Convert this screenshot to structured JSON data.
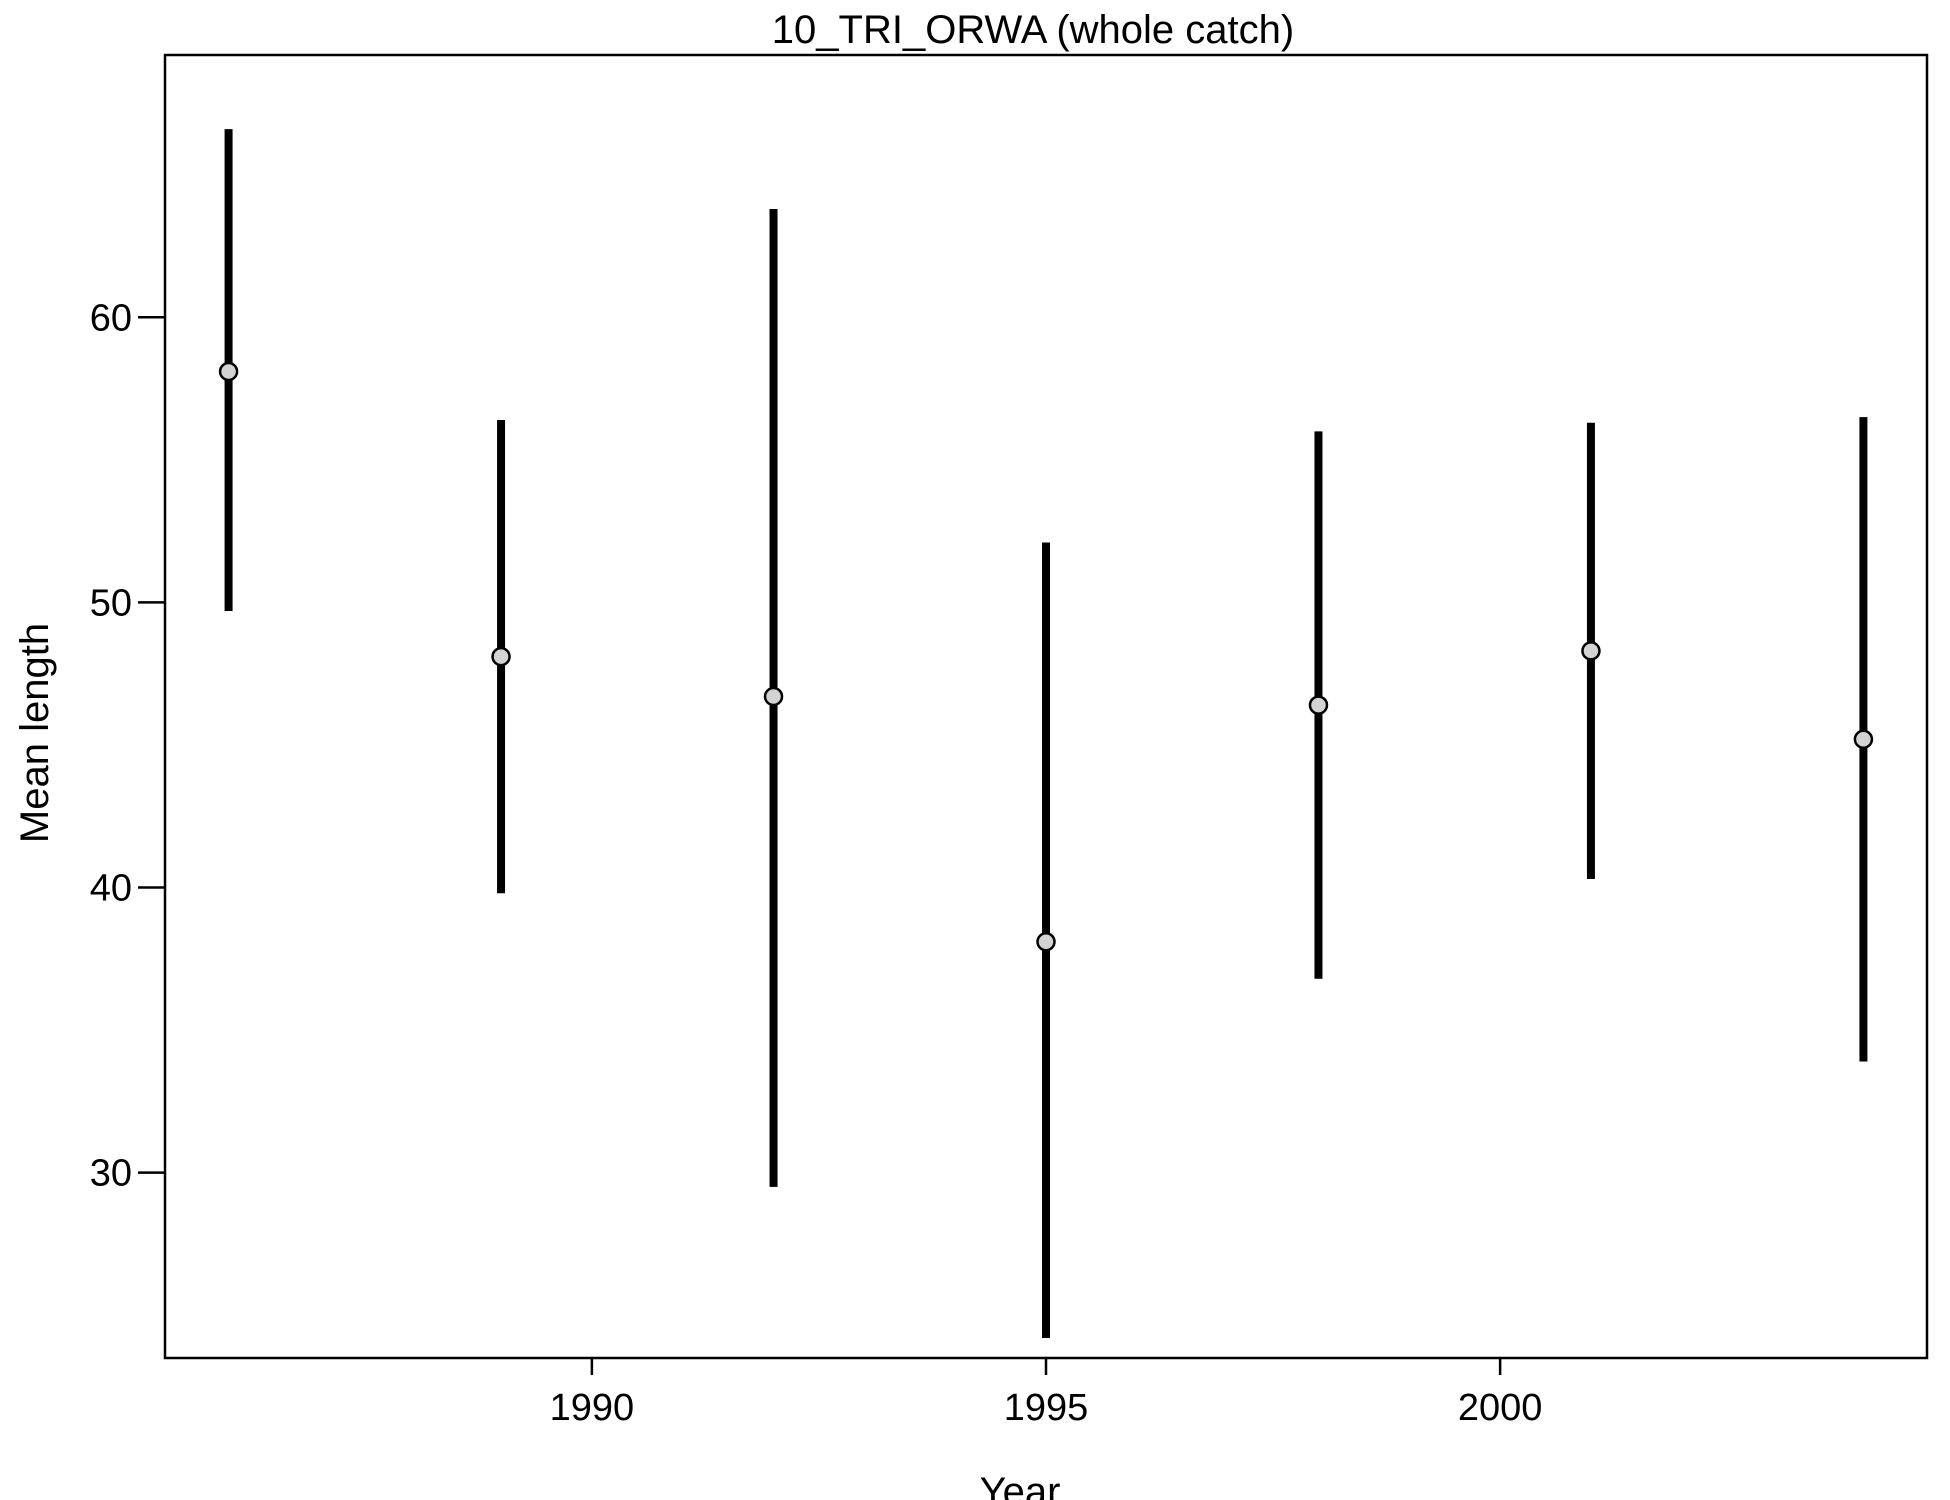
{
  "chart_data": {
    "type": "scatter",
    "title": "10_TRI_ORWA (whole catch)",
    "xlabel": "Year",
    "ylabel": "Mean length",
    "xlim": [
      1985.3,
      2004.7
    ],
    "ylim": [
      23.5,
      69.2
    ],
    "xticks": [
      1990,
      1995,
      2000
    ],
    "yticks": [
      30,
      40,
      50,
      60
    ],
    "grid": false,
    "series": [
      {
        "x": [
          1986,
          1989,
          1992,
          1995,
          1998,
          2001,
          2004
        ],
        "y": [
          58.1,
          48.1,
          46.7,
          38.1,
          46.4,
          48.3,
          45.2
        ],
        "lower": [
          49.7,
          39.8,
          29.5,
          24.2,
          36.8,
          40.3,
          33.9
        ],
        "upper": [
          66.6,
          56.4,
          63.8,
          52.1,
          56.0,
          56.3,
          56.5
        ],
        "marker_color": "#d3d3d3",
        "bar_color": "#000000"
      }
    ]
  }
}
